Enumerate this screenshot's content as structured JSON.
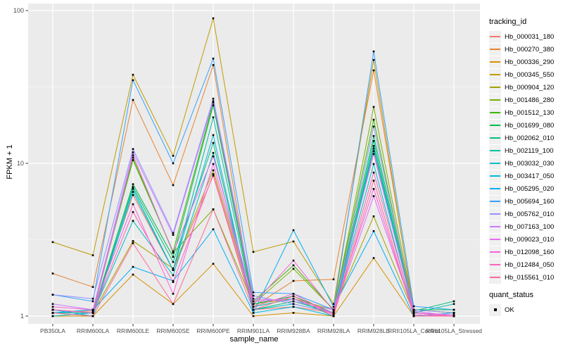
{
  "figure": {
    "xlabel": "sample_name",
    "ylabel": "FPKM + 1",
    "panel_bg": "#EBEBEB",
    "grid_color": "#FFFFFF",
    "axis_text_color": "#4D4D4D",
    "tick_color": "#333333"
  },
  "legend": {
    "tracking_title": "tracking_id",
    "quant_title": "quant_status",
    "quant_items": [
      {
        "label": "OK",
        "marker": "black-square"
      }
    ]
  },
  "chart_data": {
    "type": "line",
    "title": "",
    "xlabel": "sample_name",
    "ylabel": "FPKM + 1",
    "y_scale": "log10",
    "y_ticks": [
      1,
      10,
      100
    ],
    "y_minor_ticks": [
      3.162,
      31.62
    ],
    "ylim": [
      1,
      110
    ],
    "grid": "on",
    "legend_position": "right",
    "point_marker": "black-square",
    "quant_status_all_points": "OK",
    "categories": [
      "PB350LA",
      "RRIM600LA",
      "RRIM600LE",
      "RRIM600SE",
      "RRIM600PE",
      "RRIM901LA",
      "RRIM928BA",
      "RRIM928LA",
      "RRIM928LE",
      "RRII105LA_Control",
      "RRII105LA_Stressed"
    ],
    "series": [
      {
        "name": "Hb_000031_180",
        "color": "#F8766D",
        "values": [
          1.05,
          1.08,
          6.2,
          2.0,
          8.3,
          1.1,
          1.15,
          1.05,
          12.0,
          1.05,
          1.0
        ]
      },
      {
        "name": "Hb_000270_380",
        "color": "#EA8331",
        "values": [
          1.9,
          1.55,
          26.0,
          7.2,
          44.0,
          1.15,
          1.7,
          1.74,
          40.6,
          1.1,
          1.05
        ]
      },
      {
        "name": "Hb_000336_290",
        "color": "#D89000",
        "values": [
          1.0,
          1.0,
          1.87,
          1.2,
          2.2,
          1.0,
          1.05,
          1.0,
          2.4,
          1.0,
          1.0
        ]
      },
      {
        "name": "Hb_000345_550",
        "color": "#C09B00",
        "values": [
          3.05,
          2.5,
          38.0,
          11.2,
          89.0,
          2.63,
          3.08,
          1.2,
          47.5,
          1.05,
          1.0
        ]
      },
      {
        "name": "Hb_000904_120",
        "color": "#A3A500",
        "values": [
          1.1,
          1.05,
          3.1,
          2.05,
          9.0,
          1.2,
          1.3,
          1.1,
          4.5,
          1.05,
          1.0
        ]
      },
      {
        "name": "Hb_001486_280",
        "color": "#7CAE00",
        "values": [
          1.1,
          1.05,
          10.9,
          2.6,
          5.0,
          1.2,
          2.04,
          1.1,
          23.4,
          1.1,
          1.05
        ]
      },
      {
        "name": "Hb_001512_130",
        "color": "#39B600",
        "values": [
          1.05,
          1.1,
          10.5,
          2.65,
          25.0,
          1.25,
          2.15,
          1.1,
          19.3,
          1.05,
          1.0
        ]
      },
      {
        "name": "Hb_001699_080",
        "color": "#00BB4E",
        "values": [
          1.1,
          1.05,
          7.3,
          2.44,
          24.0,
          1.2,
          1.35,
          1.05,
          15.1,
          1.1,
          1.1
        ]
      },
      {
        "name": "Hb_002062_010",
        "color": "#00BF7D",
        "values": [
          1.05,
          1.0,
          7.0,
          2.26,
          13.6,
          1.1,
          1.25,
          1.05,
          13.0,
          1.08,
          1.25
        ]
      },
      {
        "name": "Hb_002119_100",
        "color": "#00C1A3",
        "values": [
          1.05,
          1.05,
          6.8,
          2.0,
          20.0,
          1.15,
          1.3,
          1.0,
          14.0,
          1.05,
          1.2
        ]
      },
      {
        "name": "Hb_003032_030",
        "color": "#00BFC4",
        "values": [
          1.0,
          1.05,
          4.2,
          1.85,
          11.7,
          1.1,
          1.2,
          1.05,
          9.9,
          1.0,
          1.05
        ]
      },
      {
        "name": "Hb_003417_050",
        "color": "#00BAE0",
        "values": [
          1.1,
          1.0,
          6.5,
          2.0,
          15.3,
          1.05,
          1.15,
          1.0,
          12.5,
          1.05,
          1.0
        ]
      },
      {
        "name": "Hb_005295_020",
        "color": "#00B0F6",
        "values": [
          1.05,
          1.1,
          2.1,
          1.7,
          3.7,
          1.05,
          3.65,
          1.15,
          3.6,
          1.0,
          1.0
        ]
      },
      {
        "name": "Hb_005694_160",
        "color": "#35A2FF",
        "values": [
          1.38,
          1.25,
          35.0,
          10.0,
          48.5,
          1.43,
          1.4,
          1.1,
          54.0,
          1.16,
          1.1
        ]
      },
      {
        "name": "Hb_005762_010",
        "color": "#9590FF",
        "values": [
          1.38,
          1.3,
          12.4,
          3.5,
          26.5,
          1.36,
          1.2,
          1.05,
          17.4,
          1.1,
          1.05
        ]
      },
      {
        "name": "Hb_007163_100",
        "color": "#C77CFF",
        "values": [
          1.2,
          1.1,
          11.8,
          3.4,
          25.5,
          1.3,
          1.25,
          1.1,
          11.5,
          1.08,
          1.0
        ]
      },
      {
        "name": "Hb_009023_010",
        "color": "#E76BF3",
        "values": [
          1.1,
          1.05,
          11.3,
          2.6,
          11.1,
          1.25,
          1.3,
          1.05,
          6.1,
          1.05,
          1.02
        ]
      },
      {
        "name": "Hb_012098_160",
        "color": "#FA62DB",
        "values": [
          1.15,
          1.1,
          5.4,
          1.4,
          9.9,
          1.2,
          2.31,
          1.08,
          6.8,
          1.02,
          1.0
        ]
      },
      {
        "name": "Hb_012484_050",
        "color": "#FF62BC",
        "values": [
          1.1,
          1.05,
          4.8,
          1.67,
          8.5,
          1.15,
          1.4,
          1.02,
          8.7,
          1.05,
          1.0
        ]
      },
      {
        "name": "Hb_015561_010",
        "color": "#FF6A98",
        "values": [
          1.05,
          1.0,
          3.0,
          1.2,
          5.0,
          1.1,
          1.35,
          1.0,
          7.7,
          1.0,
          1.0
        ]
      }
    ]
  }
}
